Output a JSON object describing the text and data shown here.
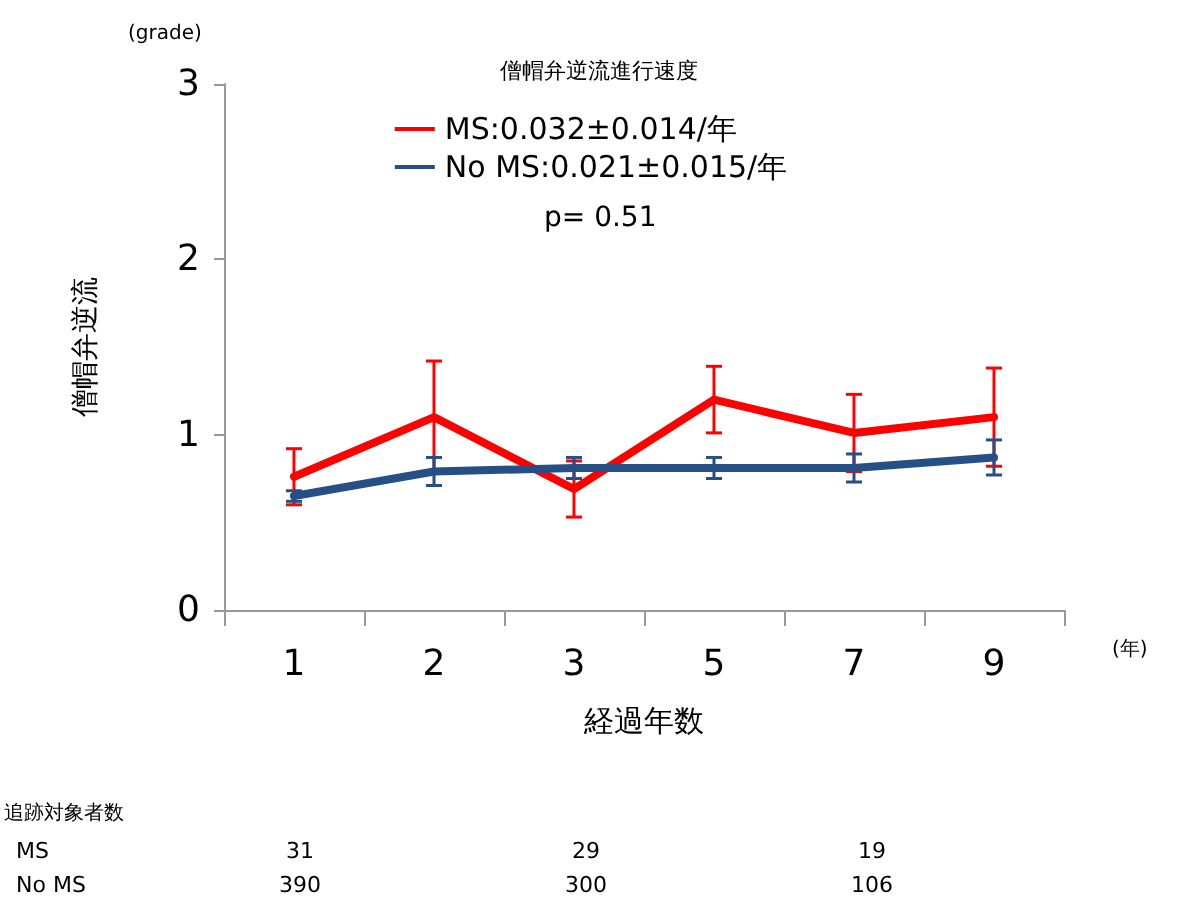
{
  "chart_data": {
    "type": "line",
    "legend_title": "僧帽弁逆流進行速度",
    "xlabel": "経過年数",
    "ylabel": "僧帽弁逆流",
    "categories": [
      "1",
      "2",
      "3",
      "5",
      "7",
      "9"
    ],
    "series": [
      {
        "name": "MS:0.032±0.014/年",
        "color": "#ff0000",
        "values": [
          0.76,
          1.1,
          0.69,
          1.2,
          1.01,
          1.1
        ],
        "errors": [
          0.16,
          0.32,
          0.16,
          0.19,
          0.22,
          0.28
        ]
      },
      {
        "name": "No MS:0.021±0.015/年",
        "color": "#264f86",
        "values": [
          0.65,
          0.79,
          0.81,
          0.81,
          0.81,
          0.87
        ],
        "errors": [
          0.03,
          0.08,
          0.06,
          0.06,
          0.08,
          0.1
        ]
      }
    ],
    "ylim": [
      0,
      3
    ],
    "yticks": [
      0,
      1,
      2,
      3
    ],
    "grid": false,
    "legend": "top",
    "marker": "none",
    "line_style": "solid",
    "annotations": [
      "(grade)",
      "(年)",
      "p= 0.51",
      "追跡対象者数",
      "MS",
      "31",
      "29",
      "19",
      "No MS",
      "390",
      "300",
      "106"
    ]
  }
}
